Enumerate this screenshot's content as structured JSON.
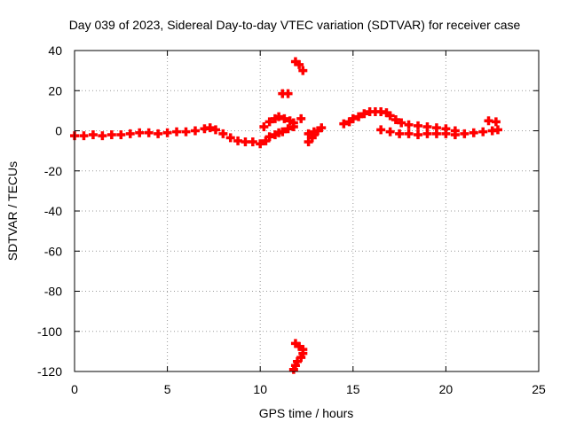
{
  "chart_data": {
    "type": "scatter",
    "title": "Day 039 of 2023, Sidereal Day-to-day VTEC variation (SDTVAR) for receiver case",
    "xlabel": "GPS time / hours",
    "ylabel": "SDTVAR / TECUs",
    "xlim": [
      0,
      25
    ],
    "ylim": [
      -120,
      40
    ],
    "xticks": [
      0,
      5,
      10,
      15,
      20,
      25
    ],
    "yticks": [
      -120,
      -100,
      -80,
      -60,
      -40,
      -20,
      0,
      20,
      40
    ],
    "grid": true,
    "marker_color": "#ff0000",
    "series": [
      {
        "name": "SDTVAR",
        "points": [
          [
            0.0,
            -2.5
          ],
          [
            0.5,
            -2.5
          ],
          [
            1.0,
            -2.0
          ],
          [
            1.5,
            -2.5
          ],
          [
            2.0,
            -2.0
          ],
          [
            2.5,
            -2.0
          ],
          [
            3.0,
            -1.5
          ],
          [
            3.5,
            -1.0
          ],
          [
            4.0,
            -1.0
          ],
          [
            4.5,
            -1.5
          ],
          [
            5.0,
            -1.0
          ],
          [
            5.5,
            -0.5
          ],
          [
            6.0,
            -0.5
          ],
          [
            6.5,
            0.0
          ],
          [
            7.0,
            1.0
          ],
          [
            7.3,
            1.5
          ],
          [
            7.6,
            0.5
          ],
          [
            8.0,
            -1.5
          ],
          [
            8.4,
            -3.5
          ],
          [
            8.8,
            -5.0
          ],
          [
            9.2,
            -5.5
          ],
          [
            9.6,
            -5.5
          ],
          [
            10.0,
            -6.5
          ],
          [
            10.3,
            -5.0
          ],
          [
            10.5,
            -3.0
          ],
          [
            10.8,
            -2.0
          ],
          [
            11.0,
            -1.0
          ],
          [
            11.2,
            -0.5
          ],
          [
            11.5,
            1.0
          ],
          [
            11.8,
            2.0
          ],
          [
            10.2,
            2.0
          ],
          [
            10.5,
            4.5
          ],
          [
            10.8,
            6.0
          ],
          [
            11.0,
            7.0
          ],
          [
            11.3,
            6.0
          ],
          [
            11.6,
            5.0
          ],
          [
            11.8,
            4.0
          ],
          [
            11.2,
            18.5
          ],
          [
            11.5,
            18.5
          ],
          [
            11.9,
            34.5
          ],
          [
            12.1,
            33.0
          ],
          [
            12.3,
            30.0
          ],
          [
            12.2,
            6.0
          ],
          [
            12.6,
            -5.5
          ],
          [
            12.8,
            -3.5
          ],
          [
            12.9,
            -2.0
          ],
          [
            13.1,
            0.0
          ],
          [
            13.3,
            1.5
          ],
          [
            12.6,
            -1.5
          ],
          [
            12.9,
            -0.5
          ],
          [
            14.5,
            3.5
          ],
          [
            14.8,
            4.5
          ],
          [
            15.0,
            6.0
          ],
          [
            15.3,
            7.0
          ],
          [
            15.6,
            8.5
          ],
          [
            15.9,
            9.5
          ],
          [
            16.2,
            9.5
          ],
          [
            16.5,
            9.5
          ],
          [
            16.8,
            9.0
          ],
          [
            17.0,
            7.5
          ],
          [
            17.3,
            5.5
          ],
          [
            17.6,
            4.0
          ],
          [
            18.0,
            3.0
          ],
          [
            18.5,
            2.5
          ],
          [
            19.0,
            2.0
          ],
          [
            19.5,
            1.5
          ],
          [
            20.0,
            1.0
          ],
          [
            20.5,
            0.0
          ],
          [
            21.0,
            -1.5
          ],
          [
            21.5,
            -1.0
          ],
          [
            22.0,
            -0.5
          ],
          [
            22.5,
            0.0
          ],
          [
            22.8,
            0.5
          ],
          [
            16.5,
            0.5
          ],
          [
            17.0,
            -0.5
          ],
          [
            17.5,
            -1.5
          ],
          [
            18.0,
            -1.5
          ],
          [
            18.5,
            -2.0
          ],
          [
            19.0,
            -1.5
          ],
          [
            19.5,
            -1.5
          ],
          [
            20.0,
            -1.5
          ],
          [
            20.5,
            -2.0
          ],
          [
            22.3,
            5.0
          ],
          [
            22.7,
            4.5
          ],
          [
            11.9,
            -106.0
          ],
          [
            12.1,
            -107.5
          ],
          [
            12.3,
            -109.0
          ],
          [
            11.8,
            -119.0
          ],
          [
            11.9,
            -117.0
          ],
          [
            12.0,
            -115.0
          ],
          [
            12.2,
            -113.0
          ],
          [
            12.3,
            -111.0
          ]
        ]
      }
    ]
  }
}
